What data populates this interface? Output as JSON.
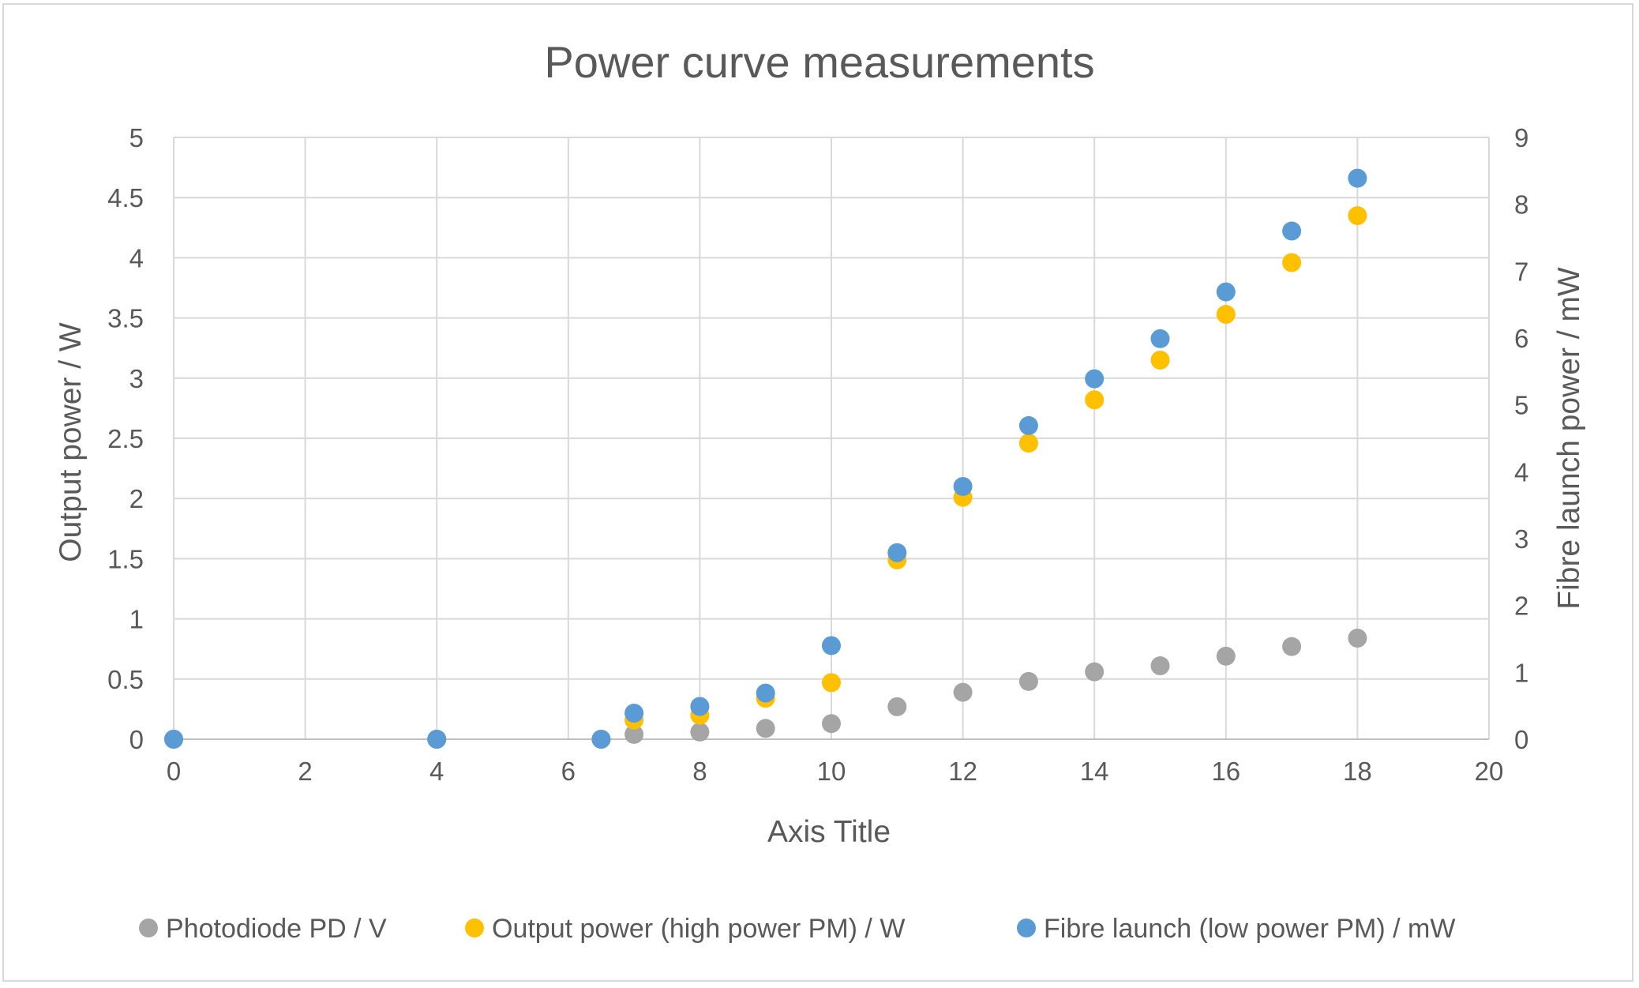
{
  "chart_data": {
    "type": "scatter",
    "title": "Power curve measurements",
    "xlabel": "Axis Title",
    "ylabel": "Output power / W",
    "y2label": "Fibre launch power  / mW",
    "xlim": [
      0,
      20
    ],
    "ylim": [
      0,
      5
    ],
    "y2lim": [
      0,
      9
    ],
    "x_ticks": [
      "0",
      "2",
      "4",
      "6",
      "8",
      "10",
      "12",
      "14",
      "16",
      "18",
      "20"
    ],
    "y_ticks": [
      "0",
      "0.5",
      "1",
      "1.5",
      "2",
      "2.5",
      "3",
      "3.5",
      "4",
      "4.5",
      "5"
    ],
    "y2_ticks": [
      "0",
      "1",
      "2",
      "3",
      "4",
      "5",
      "6",
      "7",
      "8",
      "9"
    ],
    "grid": true,
    "legend_position": "bottom",
    "series": [
      {
        "name": "Photodiode PD / V",
        "color": "#a5a5a5",
        "axis": "left",
        "x": [
          0,
          4,
          6.5,
          7,
          8,
          9,
          10,
          11,
          12,
          13,
          14,
          15,
          16,
          17,
          18
        ],
        "y": [
          0,
          0,
          0,
          0.04,
          0.06,
          0.09,
          0.13,
          0.27,
          0.39,
          0.48,
          0.56,
          0.61,
          0.69,
          0.77,
          0.84
        ]
      },
      {
        "name": "Output power (high power PM) / W",
        "color": "#ffc000",
        "axis": "left",
        "x": [
          0,
          4,
          6.5,
          7,
          8,
          9,
          10,
          11,
          12,
          13,
          14,
          15,
          16,
          17,
          18
        ],
        "y": [
          0,
          0,
          0,
          0.16,
          0.2,
          0.34,
          0.47,
          1.49,
          2.01,
          2.46,
          2.82,
          3.15,
          3.53,
          3.96,
          4.35
        ]
      },
      {
        "name": "Fibre launch (low power PM) / mW",
        "color": "#5b9bd5",
        "axis": "right",
        "x": [
          0,
          4,
          6.5,
          7,
          8,
          9,
          10,
          11,
          12,
          13,
          14,
          15,
          16,
          17,
          18
        ],
        "y": [
          0,
          0,
          0,
          0.39,
          0.49,
          0.69,
          1.4,
          2.79,
          3.78,
          4.69,
          5.39,
          5.99,
          6.69,
          7.6,
          8.39
        ]
      }
    ]
  }
}
